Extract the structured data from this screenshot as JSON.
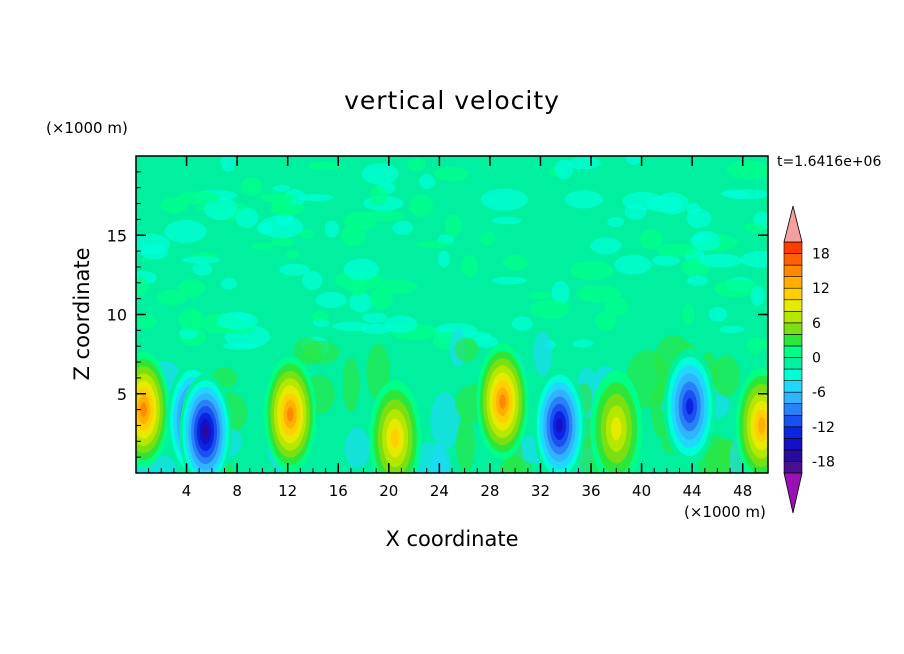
{
  "chart_data": {
    "type": "heatmap",
    "title": "vertical velocity",
    "xlabel": "X coordinate",
    "ylabel": "Z coordinate",
    "x_unit_label": "(×1000 m)",
    "y_unit_label": "(×1000 m)",
    "time_label": "t=1.6416e+06",
    "xlim": [
      0,
      50
    ],
    "ylim": [
      0,
      20
    ],
    "x_ticks": [
      4,
      8,
      12,
      16,
      20,
      24,
      28,
      32,
      36,
      40,
      44,
      48
    ],
    "y_ticks": [
      5,
      10,
      15
    ],
    "colorbar": {
      "levels": [
        -20,
        -18,
        -16,
        -14,
        -12,
        -10,
        -8,
        -6,
        -4,
        -2,
        0,
        2,
        4,
        6,
        8,
        10,
        12,
        14,
        16,
        18,
        20
      ],
      "tick_labels": [
        "18",
        "12",
        "6",
        "0",
        "-6",
        "-12",
        "-18"
      ],
      "tick_values": [
        18,
        12,
        6,
        0,
        -6,
        -12,
        -18
      ],
      "colors": [
        "#4a108f",
        "#2a0a9e",
        "#1410c8",
        "#0a24e0",
        "#1a50f0",
        "#2a80f8",
        "#30b4ff",
        "#20d8ff",
        "#00ffd8",
        "#00f0a0",
        "#00ff86",
        "#2ee63a",
        "#7ae012",
        "#b4e800",
        "#e6ea00",
        "#ffd000",
        "#ffb000",
        "#ff8800",
        "#ff6000",
        "#ff3c00"
      ],
      "over_color": "#f5a0a0",
      "under_color": "#9a10b4"
    },
    "features": [
      {
        "x": 0.6,
        "z": 4.0,
        "value": 14
      },
      {
        "x": 4.5,
        "z": 3.3,
        "value": -14
      },
      {
        "x": 5.5,
        "z": 2.6,
        "value": -16
      },
      {
        "x": 12.2,
        "z": 3.7,
        "value": 14
      },
      {
        "x": 20.5,
        "z": 2.2,
        "value": 10
      },
      {
        "x": 29.0,
        "z": 4.5,
        "value": 14
      },
      {
        "x": 33.5,
        "z": 3.0,
        "value": -14
      },
      {
        "x": 38.0,
        "z": 2.8,
        "value": 8
      },
      {
        "x": 43.8,
        "z": 4.2,
        "value": -12
      },
      {
        "x": 49.5,
        "z": 3.0,
        "value": 12
      }
    ]
  }
}
